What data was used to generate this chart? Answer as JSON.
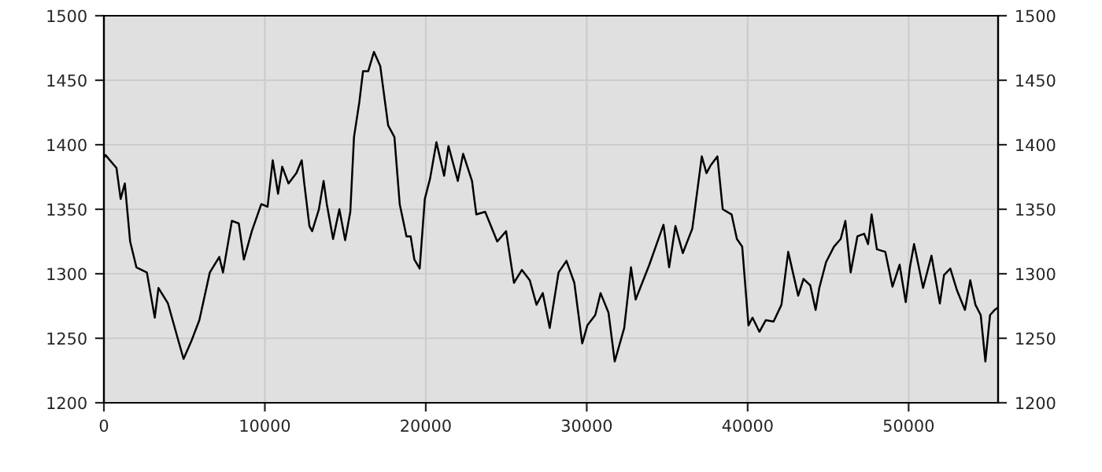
{
  "chart_data": {
    "type": "line",
    "x": [
      0,
      100,
      780,
      1040,
      1300,
      1630,
      2020,
      2670,
      3160,
      3390,
      3980,
      4630,
      4950,
      5440,
      5930,
      6580,
      7170,
      7400,
      7950,
      8380,
      8700,
      9190,
      9780,
      10170,
      10490,
      10820,
      11080,
      11470,
      11960,
      12290,
      12450,
      12770,
      12940,
      13360,
      13650,
      13850,
      14240,
      14630,
      14990,
      15310,
      15540,
      15870,
      16100,
      16420,
      16780,
      17170,
      17660,
      18050,
      18380,
      18800,
      19060,
      19290,
      19620,
      19940,
      20270,
      20660,
      21140,
      21410,
      21990,
      22320,
      22870,
      23140,
      23690,
      24440,
      24990,
      25480,
      25970,
      26460,
      26880,
      27270,
      27700,
      28250,
      28740,
      29230,
      29720,
      30040,
      30530,
      30860,
      31350,
      31740,
      32330,
      32750,
      33040,
      33890,
      34770,
      35120,
      35510,
      35970,
      36560,
      36720,
      37150,
      37440,
      37700,
      38120,
      38450,
      39000,
      39330,
      39660,
      40050,
      40300,
      40730,
      41120,
      41610,
      42100,
      42520,
      42810,
      43140,
      43470,
      43890,
      44220,
      44450,
      44870,
      45360,
      45780,
      46070,
      46400,
      46820,
      47240,
      47480,
      47700,
      48030,
      48550,
      49000,
      49440,
      49820,
      50080,
      50340,
      50900,
      51420,
      51940,
      52200,
      52590,
      53010,
      53500,
      53830,
      54150,
      54480,
      54770,
      55060,
      55350,
      55560
    ],
    "series": [
      {
        "color": "#000000",
        "values": [
          1390,
          1392,
          1382,
          1358,
          1370,
          1325,
          1305,
          1301,
          1266,
          1289,
          1277,
          1248,
          1234,
          1248,
          1264,
          1301,
          1313,
          1301,
          1341,
          1339,
          1311,
          1333,
          1354,
          1352,
          1388,
          1362,
          1383,
          1370,
          1378,
          1388,
          1370,
          1337,
          1333,
          1350,
          1372,
          1354,
          1327,
          1350,
          1326,
          1348,
          1406,
          1433,
          1457,
          1457,
          1472,
          1461,
          1415,
          1406,
          1354,
          1329,
          1329,
          1311,
          1304,
          1358,
          1374,
          1402,
          1376,
          1399,
          1372,
          1393,
          1372,
          1346,
          1348,
          1325,
          1333,
          1293,
          1303,
          1295,
          1276,
          1285,
          1258,
          1301,
          1310,
          1293,
          1246,
          1260,
          1268,
          1285,
          1270,
          1232,
          1258,
          1305,
          1280,
          1307,
          1338,
          1305,
          1337,
          1316,
          1335,
          1350,
          1391,
          1378,
          1384,
          1391,
          1350,
          1346,
          1327,
          1321,
          1260,
          1266,
          1255,
          1264,
          1263,
          1276,
          1317,
          1301,
          1283,
          1296,
          1291,
          1272,
          1289,
          1309,
          1321,
          1327,
          1341,
          1301,
          1329,
          1331,
          1323,
          1346,
          1319,
          1317,
          1290,
          1307,
          1278,
          1305,
          1323,
          1289,
          1314,
          1277,
          1299,
          1304,
          1287,
          1272,
          1295,
          1276,
          1268,
          1232,
          1268,
          1272,
          1274
        ]
      }
    ],
    "xlim": [
      0,
      55560
    ],
    "xticks": [
      0,
      10000,
      20000,
      30000,
      40000,
      50000
    ],
    "ylim": [
      1200,
      1500
    ],
    "yticks": [
      1200,
      1250,
      1300,
      1350,
      1400,
      1450,
      1500
    ],
    "y2lim": [
      1200,
      1500
    ],
    "y2ticks": [
      1200,
      1250,
      1300,
      1350,
      1400,
      1450,
      1500
    ],
    "grid": true,
    "marker": "none",
    "line_style": "solid"
  }
}
